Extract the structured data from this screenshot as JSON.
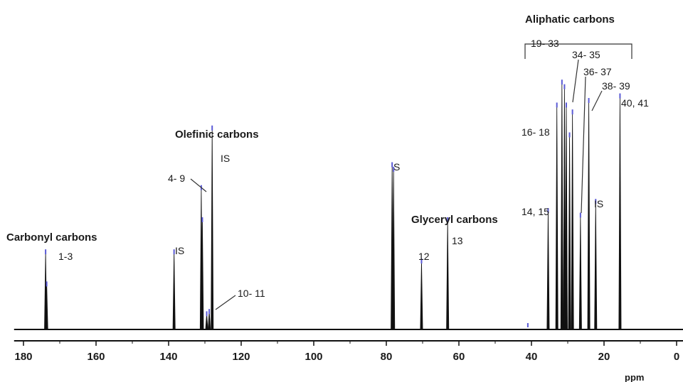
{
  "chart_data": {
    "type": "line",
    "subtype": "nmr-spectrum",
    "title": "",
    "xlabel": "ppm",
    "ylabel": "",
    "x_axis_reversed": true,
    "xlim": [
      182,
      0
    ],
    "ylim": [
      0,
      1.0
    ],
    "x_ticks": [
      {
        "value": 180,
        "label": "180"
      },
      {
        "value": 160,
        "label": "160"
      },
      {
        "value": 140,
        "label": "140"
      },
      {
        "value": 120,
        "label": "120"
      },
      {
        "value": 100,
        "label": "100"
      },
      {
        "value": 80,
        "label": "80"
      },
      {
        "value": 60,
        "label": "60"
      },
      {
        "value": 40,
        "label": "40"
      },
      {
        "value": 20,
        "label": "20"
      },
      {
        "value": 0,
        "label": "0"
      }
    ],
    "grid": false,
    "line_color": "#111111",
    "integration_mark_color": "#5a5ad6",
    "peaks": [
      {
        "ppm": 173.9,
        "height": 0.34
      },
      {
        "ppm": 173.6,
        "height": 0.2
      },
      {
        "ppm": 138.5,
        "height": 0.34
      },
      {
        "ppm": 131.0,
        "height": 0.62
      },
      {
        "ppm": 130.7,
        "height": 0.48
      },
      {
        "ppm": 129.5,
        "height": 0.07
      },
      {
        "ppm": 128.8,
        "height": 0.08
      },
      {
        "ppm": 128.0,
        "height": 0.88
      },
      {
        "ppm": 78.4,
        "height": 0.72
      },
      {
        "ppm": 78.0,
        "height": 0.7
      },
      {
        "ppm": 70.3,
        "height": 0.3
      },
      {
        "ppm": 63.1,
        "height": 0.48
      },
      {
        "ppm": 35.4,
        "height": 0.52
      },
      {
        "ppm": 33.0,
        "height": 0.98
      },
      {
        "ppm": 31.6,
        "height": 1.08
      },
      {
        "ppm": 30.9,
        "height": 1.06
      },
      {
        "ppm": 30.4,
        "height": 0.98
      },
      {
        "ppm": 29.5,
        "height": 0.85
      },
      {
        "ppm": 28.7,
        "height": 0.95
      },
      {
        "ppm": 26.5,
        "height": 0.5
      },
      {
        "ppm": 24.2,
        "height": 1.0
      },
      {
        "ppm": 22.3,
        "height": 0.56
      },
      {
        "ppm": 15.6,
        "height": 1.02
      }
    ],
    "annotations": [
      {
        "text": "Carbonyl carbons",
        "kind": "group"
      },
      {
        "text": "1-3",
        "kind": "peak"
      },
      {
        "text": "IS",
        "kind": "peak"
      },
      {
        "text": "Olefinic carbons",
        "kind": "group"
      },
      {
        "text": "4- 9",
        "kind": "peak"
      },
      {
        "text": "IS",
        "kind": "peak"
      },
      {
        "text": "10- 11",
        "kind": "peak"
      },
      {
        "text": "S",
        "kind": "peak"
      },
      {
        "text": "Glyceryl carbons",
        "kind": "group"
      },
      {
        "text": "12",
        "kind": "peak"
      },
      {
        "text": "13",
        "kind": "peak"
      },
      {
        "text": "Aliphatic carbons",
        "kind": "group"
      },
      {
        "text": "19- 33",
        "kind": "peak"
      },
      {
        "text": "34- 35",
        "kind": "peak"
      },
      {
        "text": "36- 37",
        "kind": "peak"
      },
      {
        "text": "38- 39",
        "kind": "peak"
      },
      {
        "text": "40, 41",
        "kind": "peak"
      },
      {
        "text": "16- 18",
        "kind": "peak"
      },
      {
        "text": "14, 15",
        "kind": "peak"
      },
      {
        "text": "IS",
        "kind": "peak"
      }
    ]
  }
}
